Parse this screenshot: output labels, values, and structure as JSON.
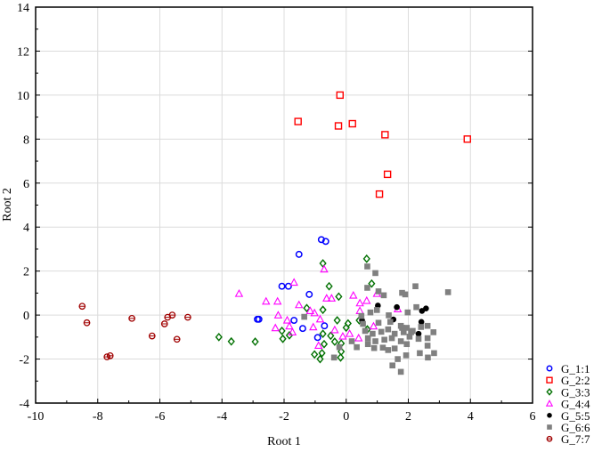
{
  "chart_data": {
    "type": "scatter",
    "xlabel": "Root 1",
    "ylabel": "Root 2",
    "xlim": [
      -10,
      6
    ],
    "ylim": [
      -4,
      14
    ],
    "xticks": [
      "-10",
      "-8",
      "-6",
      "-4",
      "-2",
      "0",
      "2",
      "4",
      "6"
    ],
    "yticks": [
      "-4",
      "-2",
      "0",
      "2",
      "4",
      "6",
      "8",
      "10",
      "12",
      "14"
    ],
    "grid": true,
    "legend_position": "bottom-right",
    "series": [
      {
        "name": "G_1:1",
        "marker": "circle-open",
        "color": "#0000ff",
        "points": [
          [
            -0.8,
            3.43
          ],
          [
            -0.66,
            3.35
          ],
          [
            -1.52,
            2.76
          ],
          [
            -2.07,
            1.31
          ],
          [
            -1.86,
            1.31
          ],
          [
            -1.19,
            0.94
          ],
          [
            -2.81,
            -0.19
          ],
          [
            -2.86,
            -0.19
          ],
          [
            -1.68,
            -0.24
          ],
          [
            -1.4,
            -0.61
          ],
          [
            -0.7,
            -0.49
          ],
          [
            -0.92,
            -1.02
          ]
        ]
      },
      {
        "name": "G_2:2",
        "marker": "square-open",
        "color": "#ff0000",
        "points": [
          [
            -1.55,
            8.8
          ],
          [
            -0.2,
            10.0
          ],
          [
            -0.25,
            8.6
          ],
          [
            0.2,
            8.7
          ],
          [
            1.25,
            8.2
          ],
          [
            1.33,
            6.4
          ],
          [
            1.07,
            5.5
          ],
          [
            3.9,
            8.0
          ]
        ]
      },
      {
        "name": "G_3:3",
        "marker": "diamond-open",
        "color": "#007000",
        "points": [
          [
            -4.1,
            -1.0
          ],
          [
            -3.7,
            -1.2
          ],
          [
            -0.75,
            2.35
          ],
          [
            0.66,
            2.56
          ],
          [
            -0.55,
            1.31
          ],
          [
            -0.24,
            0.84
          ],
          [
            0.82,
            1.43
          ],
          [
            -1.27,
            0.32
          ],
          [
            -0.75,
            0.24
          ],
          [
            -0.29,
            -0.24
          ],
          [
            0.06,
            -0.38
          ],
          [
            0.0,
            -0.57
          ],
          [
            0.42,
            -0.24
          ],
          [
            -2.93,
            -1.21
          ],
          [
            -2.07,
            -0.72
          ],
          [
            -2.04,
            -1.08
          ],
          [
            -1.83,
            -0.92
          ],
          [
            -0.75,
            -0.85
          ],
          [
            -0.5,
            -0.94
          ],
          [
            -0.37,
            -1.21
          ],
          [
            -0.16,
            -1.29
          ],
          [
            -0.71,
            -1.32
          ],
          [
            -0.78,
            -1.73
          ],
          [
            -0.84,
            -2.0
          ],
          [
            -0.16,
            -1.66
          ],
          [
            -0.18,
            -1.93
          ],
          [
            -1.02,
            -1.79
          ],
          [
            0.68,
            -0.65
          ]
        ]
      },
      {
        "name": "G_4:4",
        "marker": "triangle-open",
        "color": "#ff00ff",
        "points": [
          [
            -3.45,
            0.97
          ],
          [
            -0.71,
            2.08
          ],
          [
            -1.68,
            1.48
          ],
          [
            -2.58,
            0.62
          ],
          [
            -2.21,
            0.62
          ],
          [
            -1.52,
            0.46
          ],
          [
            -0.63,
            0.76
          ],
          [
            -0.47,
            0.76
          ],
          [
            0.23,
            0.89
          ],
          [
            0.44,
            0.54
          ],
          [
            0.66,
            0.65
          ],
          [
            0.99,
            0.97
          ],
          [
            -2.19,
            -0.01
          ],
          [
            -1.02,
            0.09
          ],
          [
            -1.16,
            0.19
          ],
          [
            -1.9,
            -0.24
          ],
          [
            -0.84,
            -0.19
          ],
          [
            -2.28,
            -0.59
          ],
          [
            -1.83,
            -0.51
          ],
          [
            -1.73,
            -0.78
          ],
          [
            -1.06,
            -0.55
          ],
          [
            -0.37,
            -0.68
          ],
          [
            -0.11,
            -0.97
          ],
          [
            0.11,
            -0.85
          ],
          [
            0.4,
            -1.05
          ],
          [
            0.88,
            -0.51
          ],
          [
            0.44,
            0.19
          ],
          [
            -0.89,
            -1.39
          ],
          [
            1.66,
            0.27
          ]
        ]
      },
      {
        "name": "G_5:5",
        "marker": "circle-filled",
        "color": "#000000",
        "points": [
          [
            1.02,
            0.43
          ],
          [
            1.63,
            0.36
          ],
          [
            2.44,
            0.19
          ],
          [
            2.57,
            0.3
          ],
          [
            0.51,
            -0.24
          ],
          [
            1.52,
            -0.2
          ],
          [
            2.42,
            -0.31
          ],
          [
            2.33,
            -0.85
          ]
        ]
      },
      {
        "name": "G_6:6",
        "marker": "square-filled",
        "color": "#808080",
        "points": [
          [
            0.68,
            2.21
          ],
          [
            0.94,
            1.91
          ],
          [
            2.23,
            1.31
          ],
          [
            3.28,
            1.04
          ],
          [
            1.04,
            1.08
          ],
          [
            1.21,
            0.9
          ],
          [
            1.8,
            1.01
          ],
          [
            1.9,
            0.94
          ],
          [
            0.68,
            1.24
          ],
          [
            -1.35,
            -0.08
          ],
          [
            0.78,
            0.12
          ],
          [
            0.99,
            0.23
          ],
          [
            1.37,
            -0.01
          ],
          [
            1.98,
            0.12
          ],
          [
            2.26,
            0.36
          ],
          [
            0.49,
            -0.04
          ],
          [
            0.54,
            -0.4
          ],
          [
            1.04,
            -0.35
          ],
          [
            1.42,
            -0.31
          ],
          [
            1.76,
            -0.49
          ],
          [
            1.95,
            -0.58
          ],
          [
            2.14,
            -0.72
          ],
          [
            2.41,
            -0.54
          ],
          [
            2.62,
            -0.49
          ],
          [
            2.81,
            -0.78
          ],
          [
            0.61,
            -0.72
          ],
          [
            0.85,
            -0.85
          ],
          [
            1.13,
            -0.76
          ],
          [
            1.35,
            -0.65
          ],
          [
            1.56,
            -0.85
          ],
          [
            1.85,
            -0.78
          ],
          [
            2.04,
            -0.98
          ],
          [
            2.33,
            -1.08
          ],
          [
            2.62,
            -1.05
          ],
          [
            0.7,
            -1.05
          ],
          [
            0.94,
            -1.19
          ],
          [
            1.23,
            -1.12
          ],
          [
            1.47,
            -1.05
          ],
          [
            1.76,
            -1.19
          ],
          [
            0.18,
            -1.19
          ],
          [
            0.34,
            -1.46
          ],
          [
            0.7,
            -1.32
          ],
          [
            0.9,
            -1.5
          ],
          [
            1.18,
            -1.48
          ],
          [
            1.56,
            -1.52
          ],
          [
            1.95,
            -1.32
          ],
          [
            2.62,
            -1.39
          ],
          [
            2.37,
            -1.73
          ],
          [
            2.83,
            -1.73
          ],
          [
            2.63,
            -1.93
          ],
          [
            1.93,
            -1.83
          ],
          [
            1.66,
            -2.0
          ],
          [
            -0.39,
            -1.93
          ],
          [
            -0.22,
            -1.46
          ],
          [
            1.49,
            -2.29
          ],
          [
            1.76,
            -2.58
          ],
          [
            1.35,
            -1.59
          ],
          [
            2.09,
            -0.78
          ],
          [
            1.8,
            -0.58
          ]
        ]
      },
      {
        "name": "G_7:7",
        "marker": "theta-open",
        "color": "#a00000",
        "points": [
          [
            -8.5,
            0.4
          ],
          [
            -8.35,
            -0.35
          ],
          [
            -7.7,
            -1.9
          ],
          [
            -7.6,
            -1.85
          ],
          [
            -6.9,
            -0.15
          ],
          [
            -6.25,
            -0.95
          ],
          [
            -5.85,
            -0.4
          ],
          [
            -5.75,
            -0.1
          ],
          [
            -5.6,
            0.0
          ],
          [
            -5.45,
            -1.1
          ],
          [
            -5.1,
            -0.1
          ]
        ]
      }
    ]
  }
}
